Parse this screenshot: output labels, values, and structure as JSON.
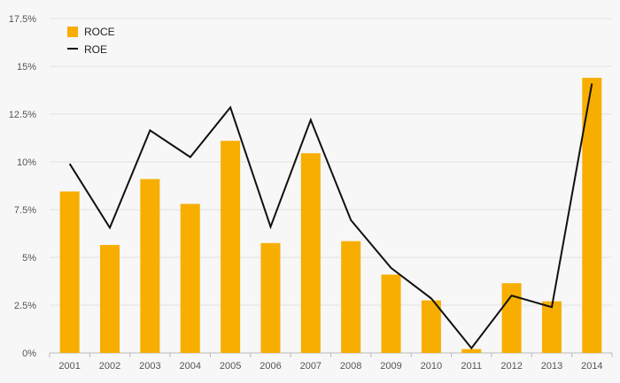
{
  "chart_data": {
    "type": "bar",
    "categories": [
      "2001",
      "2002",
      "2003",
      "2004",
      "2005",
      "2006",
      "2007",
      "2008",
      "2009",
      "2010",
      "2011",
      "2012",
      "2013",
      "2014"
    ],
    "series": [
      {
        "name": "ROCE",
        "kind": "bar",
        "color": "#f7ae00",
        "values": [
          8.45,
          5.65,
          9.1,
          7.8,
          11.1,
          5.75,
          10.45,
          5.85,
          4.1,
          2.75,
          0.2,
          3.65,
          2.7,
          14.4
        ]
      },
      {
        "name": "ROE",
        "kind": "line",
        "color": "#111111",
        "values": [
          9.9,
          6.55,
          11.65,
          10.25,
          12.85,
          6.6,
          12.2,
          6.95,
          4.45,
          2.85,
          0.25,
          3.0,
          2.4,
          14.1
        ]
      }
    ],
    "ylim": [
      0,
      17.5
    ],
    "yticks": [
      0,
      2.5,
      5,
      7.5,
      10,
      12.5,
      15,
      17.5
    ],
    "ytick_labels": [
      "0%",
      "2.5%",
      "5%",
      "7.5%",
      "10%",
      "12.5%",
      "15%",
      "17.5%"
    ],
    "grid": true,
    "legend_position": "top-left"
  }
}
